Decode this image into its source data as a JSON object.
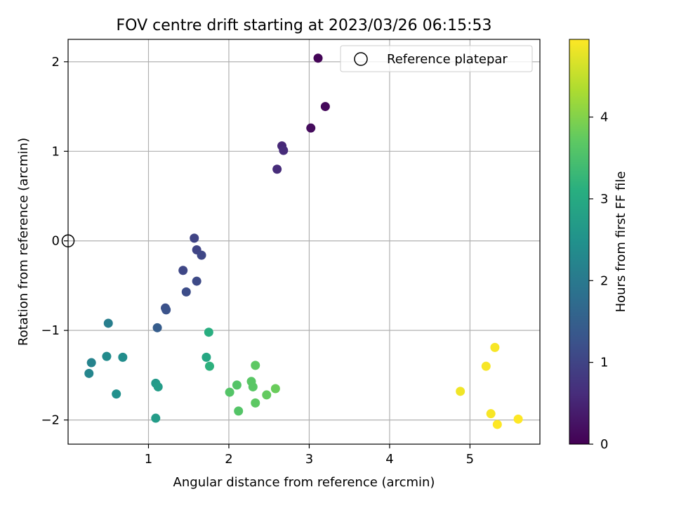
{
  "chart_data": {
    "type": "scatter",
    "title": "FOV centre drift starting at 2023/03/26 06:15:53",
    "xlabel": "Angular distance from reference (arcmin)",
    "ylabel": "Rotation from reference (arcmin)",
    "xlim": [
      0,
      5.87
    ],
    "ylim": [
      -2.27,
      2.25
    ],
    "xticks": [
      1,
      2,
      3,
      4,
      5
    ],
    "xtick_labels": [
      "1",
      "2",
      "3",
      "4",
      "5"
    ],
    "yticks": [
      -2,
      -1,
      0,
      1,
      2
    ],
    "ytick_labels": [
      "−2",
      "−1",
      "0",
      "1",
      "2"
    ],
    "grid": true,
    "legend": {
      "placement": "top-right",
      "entries": [
        "Reference platepar"
      ]
    },
    "colorbar": {
      "label": "Hours from first FF file",
      "colormap": "viridis",
      "range": [
        0,
        4.95
      ],
      "ticks": [
        0,
        1,
        2,
        3,
        4
      ],
      "tick_labels": [
        "0",
        "1",
        "2",
        "3",
        "4"
      ]
    },
    "reference_point": {
      "x": 0,
      "y": 0,
      "label": "Reference platepar",
      "marker": "hollow circle"
    },
    "points": [
      {
        "x": 3.11,
        "y": 2.04,
        "t": 0.05
      },
      {
        "x": 3.2,
        "y": 1.5,
        "t": 0.1
      },
      {
        "x": 3.02,
        "y": 1.26,
        "t": 0.15
      },
      {
        "x": 2.66,
        "y": 1.06,
        "t": 0.55
      },
      {
        "x": 2.68,
        "y": 1.01,
        "t": 0.6
      },
      {
        "x": 2.6,
        "y": 0.8,
        "t": 0.6
      },
      {
        "x": 1.57,
        "y": 0.03,
        "t": 1.0
      },
      {
        "x": 1.6,
        "y": -0.1,
        "t": 1.0
      },
      {
        "x": 1.66,
        "y": -0.16,
        "t": 1.05
      },
      {
        "x": 1.43,
        "y": -0.33,
        "t": 1.05
      },
      {
        "x": 1.6,
        "y": -0.45,
        "t": 1.1
      },
      {
        "x": 1.47,
        "y": -0.57,
        "t": 1.15
      },
      {
        "x": 1.21,
        "y": -0.75,
        "t": 1.2
      },
      {
        "x": 1.22,
        "y": -0.77,
        "t": 1.25
      },
      {
        "x": 1.11,
        "y": -0.97,
        "t": 1.45
      },
      {
        "x": 0.5,
        "y": -0.92,
        "t": 2.1
      },
      {
        "x": 0.29,
        "y": -1.36,
        "t": 2.2
      },
      {
        "x": 0.26,
        "y": -1.48,
        "t": 2.25
      },
      {
        "x": 0.48,
        "y": -1.29,
        "t": 2.35
      },
      {
        "x": 0.68,
        "y": -1.3,
        "t": 2.4
      },
      {
        "x": 0.6,
        "y": -1.71,
        "t": 2.45
      },
      {
        "x": 1.09,
        "y": -1.59,
        "t": 2.65
      },
      {
        "x": 1.12,
        "y": -1.63,
        "t": 2.7
      },
      {
        "x": 1.09,
        "y": -1.98,
        "t": 2.7
      },
      {
        "x": 1.72,
        "y": -1.3,
        "t": 2.95
      },
      {
        "x": 1.75,
        "y": -1.02,
        "t": 3.1
      },
      {
        "x": 1.76,
        "y": -1.4,
        "t": 3.15
      },
      {
        "x": 2.01,
        "y": -1.69,
        "t": 3.6
      },
      {
        "x": 2.1,
        "y": -1.61,
        "t": 3.6
      },
      {
        "x": 2.12,
        "y": -1.9,
        "t": 3.6
      },
      {
        "x": 2.28,
        "y": -1.57,
        "t": 3.65
      },
      {
        "x": 2.3,
        "y": -1.63,
        "t": 3.65
      },
      {
        "x": 2.33,
        "y": -1.39,
        "t": 3.7
      },
      {
        "x": 2.33,
        "y": -1.81,
        "t": 3.7
      },
      {
        "x": 2.47,
        "y": -1.72,
        "t": 3.75
      },
      {
        "x": 2.58,
        "y": -1.65,
        "t": 3.8
      },
      {
        "x": 4.88,
        "y": -1.68,
        "t": 4.85
      },
      {
        "x": 5.2,
        "y": -1.4,
        "t": 4.9
      },
      {
        "x": 5.31,
        "y": -1.19,
        "t": 4.9
      },
      {
        "x": 5.26,
        "y": -1.93,
        "t": 4.9
      },
      {
        "x": 5.34,
        "y": -2.05,
        "t": 4.95
      },
      {
        "x": 5.6,
        "y": -1.99,
        "t": 4.95
      }
    ]
  }
}
